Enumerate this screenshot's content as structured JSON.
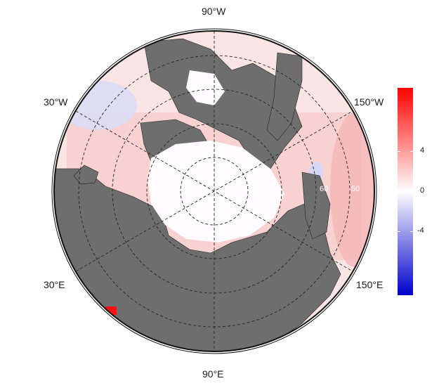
{
  "map": {
    "projection": "north-polar-stereographic",
    "ocean_anomaly_colors": {
      "positive": "#ff0000",
      "zero": "#ffffff",
      "negative": "#0000cc"
    },
    "land_color": "#6e6e6e",
    "ice_color": "#fdfbfd",
    "graticule": "dashed",
    "longitude_labels": {
      "top": "90°W",
      "upper_left": "30°W",
      "upper_right": "150°W",
      "lower_left": "30°E",
      "lower_right": "150°E",
      "bottom": "90°E"
    },
    "latitude_labels": [
      "60",
      "50"
    ]
  },
  "colorbar": {
    "ticks": [
      "4",
      "0",
      "-4"
    ],
    "range": [
      -6.5,
      6.5
    ]
  }
}
